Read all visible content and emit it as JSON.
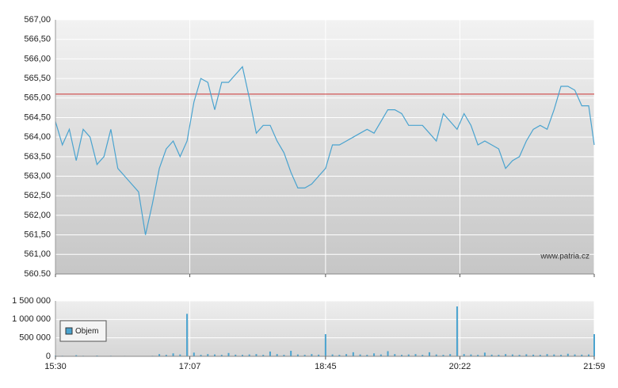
{
  "chart_data": [
    {
      "type": "line",
      "color": "#4aa3cf",
      "annotation": "www.patria.cz",
      "reference_line": {
        "value": 565.1,
        "color": "#cc3333"
      },
      "xlim": [
        930,
        1319
      ],
      "ylim": [
        560.5,
        567
      ],
      "yticks": [
        {
          "value": 560.5,
          "label": "560.50"
        },
        {
          "value": 561,
          "label": "561,00"
        },
        {
          "value": 561.5,
          "label": "561,50"
        },
        {
          "value": 562,
          "label": "562,00"
        },
        {
          "value": 562.5,
          "label": "562,50"
        },
        {
          "value": 563,
          "label": "563,00"
        },
        {
          "value": 563.5,
          "label": "563,50"
        },
        {
          "value": 564,
          "label": "564,00"
        },
        {
          "value": 564.5,
          "label": "564,50"
        },
        {
          "value": 565,
          "label": "565,00"
        },
        {
          "value": 565.5,
          "label": "565,50"
        },
        {
          "value": 566,
          "label": "566,00"
        },
        {
          "value": 566.5,
          "label": "566,50"
        },
        {
          "value": 567,
          "label": "567,00"
        }
      ],
      "grid": true,
      "x": [
        930,
        935,
        940,
        945,
        950,
        955,
        960,
        965,
        970,
        975,
        980,
        985,
        990,
        995,
        1000,
        1005,
        1010,
        1015,
        1020,
        1025,
        1030,
        1035,
        1040,
        1045,
        1050,
        1055,
        1060,
        1065,
        1070,
        1075,
        1080,
        1085,
        1090,
        1095,
        1100,
        1105,
        1110,
        1115,
        1120,
        1125,
        1130,
        1135,
        1140,
        1145,
        1150,
        1155,
        1160,
        1165,
        1170,
        1175,
        1180,
        1185,
        1190,
        1195,
        1200,
        1205,
        1210,
        1215,
        1220,
        1225,
        1230,
        1235,
        1240,
        1245,
        1250,
        1255,
        1260,
        1265,
        1270,
        1275,
        1280,
        1285,
        1290,
        1295,
        1300,
        1305,
        1310,
        1315,
        1319
      ],
      "values": [
        564.4,
        563.8,
        564.2,
        563.4,
        564.2,
        564.0,
        563.3,
        563.5,
        564.2,
        563.2,
        563.0,
        562.8,
        562.6,
        561.5,
        562.3,
        563.2,
        563.7,
        563.9,
        563.5,
        563.9,
        564.9,
        565.5,
        565.4,
        564.7,
        565.4,
        565.4,
        565.6,
        565.8,
        565.0,
        564.1,
        564.3,
        564.3,
        563.9,
        563.6,
        563.1,
        562.7,
        562.7,
        562.8,
        563.0,
        563.2,
        563.8,
        563.8,
        563.9,
        564.0,
        564.1,
        564.2,
        564.1,
        564.4,
        564.7,
        564.7,
        564.6,
        564.3,
        564.3,
        564.3,
        564.1,
        563.9,
        564.6,
        564.4,
        564.2,
        564.6,
        564.3,
        563.8,
        563.9,
        563.8,
        563.7,
        563.2,
        563.4,
        563.5,
        563.9,
        564.2,
        564.3,
        564.2,
        564.7,
        565.3,
        565.3,
        565.2,
        564.8,
        564.8,
        563.8
      ]
    },
    {
      "type": "bar",
      "xlim": [
        930,
        1319
      ],
      "xticks": [
        {
          "value": 930,
          "label": "15:30"
        },
        {
          "value": 1027,
          "label": "17:07"
        },
        {
          "value": 1125,
          "label": "18:45"
        },
        {
          "value": 1222,
          "label": "20:22"
        },
        {
          "value": 1319,
          "label": "21:59"
        }
      ],
      "ylim": [
        0,
        1500000
      ],
      "yticks": [
        0,
        {
          "value": 500000,
          "label": "500 000"
        },
        {
          "value": 1000000,
          "label": "1 000 000"
        },
        {
          "value": 1500000,
          "label": "1 500 000"
        }
      ],
      "grid": true,
      "legend": "bottom-left",
      "x": [
        930,
        935,
        940,
        945,
        950,
        955,
        960,
        965,
        970,
        975,
        980,
        985,
        990,
        995,
        1000,
        1005,
        1010,
        1015,
        1020,
        1025,
        1030,
        1035,
        1040,
        1045,
        1050,
        1055,
        1060,
        1065,
        1070,
        1075,
        1080,
        1085,
        1090,
        1095,
        1100,
        1105,
        1110,
        1115,
        1120,
        1125,
        1130,
        1135,
        1140,
        1145,
        1150,
        1155,
        1160,
        1165,
        1170,
        1175,
        1180,
        1185,
        1190,
        1195,
        1200,
        1205,
        1210,
        1215,
        1220,
        1225,
        1230,
        1235,
        1240,
        1245,
        1250,
        1255,
        1260,
        1265,
        1270,
        1275,
        1280,
        1285,
        1290,
        1295,
        1300,
        1305,
        1310,
        1315,
        1319
      ],
      "series": [
        {
          "name": "Objem",
          "color": "#4aa3cf",
          "values": [
            20000,
            15000,
            10000,
            30000,
            15000,
            10000,
            20000,
            10000,
            15000,
            10000,
            12000,
            8000,
            10000,
            10000,
            15000,
            60000,
            40000,
            80000,
            50000,
            1150000,
            100000,
            40000,
            60000,
            50000,
            40000,
            90000,
            45000,
            40000,
            50000,
            60000,
            40000,
            130000,
            60000,
            40000,
            150000,
            50000,
            40000,
            60000,
            45000,
            600000,
            50000,
            40000,
            60000,
            110000,
            50000,
            40000,
            80000,
            50000,
            140000,
            60000,
            40000,
            50000,
            60000,
            40000,
            110000,
            50000,
            40000,
            60000,
            1350000,
            60000,
            50000,
            40000,
            100000,
            45000,
            40000,
            60000,
            50000,
            40000,
            55000,
            45000,
            40000,
            60000,
            50000,
            40000,
            70000,
            50000,
            45000,
            50000,
            600000
          ]
        }
      ]
    }
  ]
}
